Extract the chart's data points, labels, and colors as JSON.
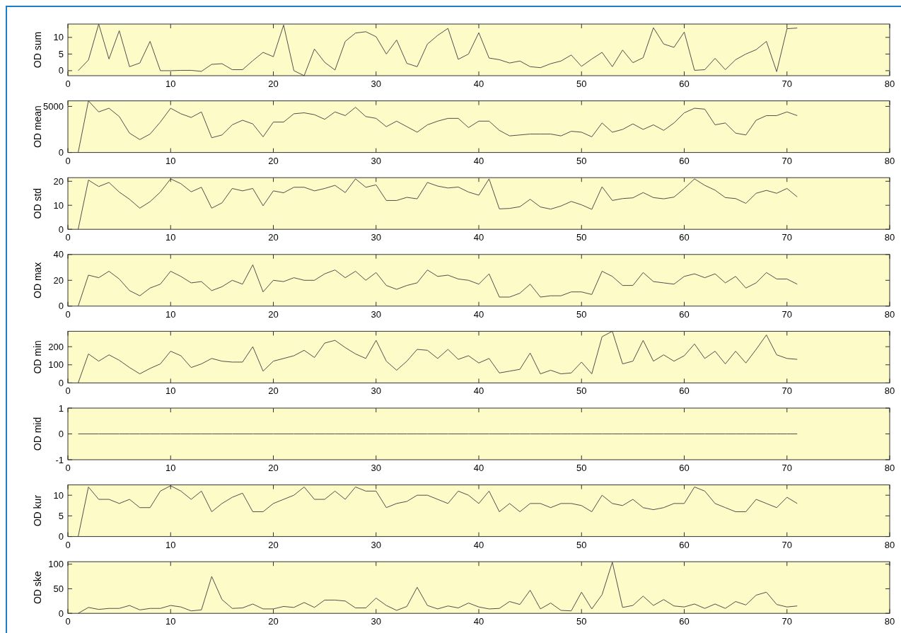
{
  "chart_data": [
    {
      "type": "line",
      "ylabel": "OD sum",
      "color": "#505050",
      "xlim": [
        0,
        80
      ],
      "xticks": [
        0,
        10,
        20,
        30,
        40,
        50,
        60,
        70,
        80
      ],
      "ylim": [
        -1.5,
        14
      ],
      "yticks": [
        0,
        5,
        10
      ],
      "x": [
        1,
        2,
        3,
        4,
        5,
        6,
        7,
        8,
        9,
        10,
        11,
        12,
        13,
        14,
        15,
        16,
        17,
        18,
        19,
        20,
        21,
        22,
        23,
        24,
        25,
        26,
        27,
        28,
        29,
        30,
        31,
        32,
        33,
        34,
        35,
        36,
        37,
        38,
        39,
        40,
        41,
        42,
        43,
        44,
        45,
        46,
        47,
        48,
        49,
        50,
        51,
        52,
        53,
        54,
        55,
        56,
        57,
        58,
        59,
        60,
        61,
        62,
        63,
        64,
        65,
        66,
        67,
        68,
        69,
        70,
        71
      ],
      "values": [
        0,
        3.2,
        14,
        3.5,
        12,
        1.2,
        2.3,
        8.8,
        0,
        0,
        0.1,
        0.1,
        -0.2,
        1.9,
        2.1,
        0.3,
        0.3,
        3,
        5.5,
        4.2,
        13.7,
        0,
        -1.5,
        6.5,
        2.5,
        0.2,
        8.8,
        11.3,
        11.7,
        10.2,
        5,
        9.2,
        2.2,
        1.2,
        8,
        10.6,
        12.7,
        3.4,
        5,
        11.4,
        3.8,
        3.3,
        2.3,
        2.9,
        1.2,
        0.9,
        2.1,
        2.9,
        4.7,
        1.3,
        3.5,
        5.5,
        1.2,
        6.2,
        2.4,
        3.9,
        12.9,
        8,
        7,
        11.6,
        0.1,
        0.3,
        3.7,
        0.3,
        3.3,
        5,
        6.3,
        8.8,
        -0.3,
        12.6,
        12.8
      ]
    },
    {
      "type": "line",
      "ylabel": "OD mean",
      "color": "#505050",
      "xlim": [
        0,
        80
      ],
      "xticks": [
        0,
        10,
        20,
        30,
        40,
        50,
        60,
        70,
        80
      ],
      "ylim": [
        0,
        5600
      ],
      "yticks": [
        0,
        5000
      ],
      "x": [
        1,
        2,
        3,
        4,
        5,
        6,
        7,
        8,
        9,
        10,
        11,
        12,
        13,
        14,
        15,
        16,
        17,
        18,
        19,
        20,
        21,
        22,
        23,
        24,
        25,
        26,
        27,
        28,
        29,
        30,
        31,
        32,
        33,
        34,
        35,
        36,
        37,
        38,
        39,
        40,
        41,
        42,
        43,
        44,
        45,
        46,
        47,
        48,
        49,
        50,
        51,
        52,
        53,
        54,
        55,
        56,
        57,
        58,
        59,
        60,
        61,
        62,
        63,
        64,
        65,
        66,
        67,
        68,
        69,
        70,
        71
      ],
      "values": [
        0,
        5600,
        4400,
        4800,
        3900,
        2100,
        1400,
        2000,
        3300,
        4800,
        4200,
        3800,
        4400,
        1600,
        1900,
        3000,
        3500,
        3100,
        1700,
        3300,
        3300,
        4200,
        4300,
        4100,
        3600,
        4400,
        4000,
        4900,
        3900,
        3700,
        2800,
        3400,
        2800,
        2200,
        3000,
        3400,
        3700,
        3700,
        2700,
        3400,
        3400,
        2400,
        1800,
        1900,
        2000,
        2000,
        2000,
        1800,
        2300,
        2200,
        1700,
        3200,
        2200,
        2500,
        3100,
        2500,
        3000,
        2400,
        3200,
        4300,
        4800,
        4700,
        3000,
        3200,
        2100,
        1900,
        3500,
        4000,
        4000,
        4400,
        4000
      ]
    },
    {
      "type": "line",
      "ylabel": "OD std",
      "color": "#505050",
      "xlim": [
        0,
        80
      ],
      "xticks": [
        0,
        10,
        20,
        30,
        40,
        50,
        60,
        70,
        80
      ],
      "ylim": [
        0,
        21.5
      ],
      "yticks": [
        0,
        10,
        20
      ],
      "x": [
        1,
        2,
        3,
        4,
        5,
        6,
        7,
        8,
        9,
        10,
        11,
        12,
        13,
        14,
        15,
        16,
        17,
        18,
        19,
        20,
        21,
        22,
        23,
        24,
        25,
        26,
        27,
        28,
        29,
        30,
        31,
        32,
        33,
        34,
        35,
        36,
        37,
        38,
        39,
        40,
        41,
        42,
        43,
        44,
        45,
        46,
        47,
        48,
        49,
        50,
        51,
        52,
        53,
        54,
        55,
        56,
        57,
        58,
        59,
        60,
        61,
        62,
        63,
        64,
        65,
        66,
        67,
        68,
        69,
        70,
        71
      ],
      "values": [
        0,
        20.5,
        17.8,
        19.5,
        15.5,
        12.5,
        8.8,
        11.5,
        15.5,
        21,
        19,
        15.6,
        17.5,
        8.8,
        11,
        17,
        16,
        17,
        9.8,
        16,
        15.2,
        17.5,
        17.5,
        16,
        17,
        18.3,
        15.3,
        21,
        17.5,
        18.5,
        12,
        12,
        13.3,
        12.7,
        19.5,
        18,
        17.2,
        17.6,
        15.5,
        14.2,
        21,
        8.5,
        8.7,
        9.4,
        12.5,
        9.3,
        8.4,
        9.7,
        11.6,
        10.2,
        8.3,
        17.7,
        12,
        12.8,
        13.1,
        15.3,
        13.2,
        12.7,
        13.4,
        17,
        21,
        18.3,
        16.3,
        13.2,
        12.8,
        10.8,
        15,
        16.2,
        15,
        17,
        13.5
      ]
    },
    {
      "type": "line",
      "ylabel": "OD max",
      "color": "#505050",
      "xlim": [
        0,
        80
      ],
      "xticks": [
        0,
        10,
        20,
        30,
        40,
        50,
        60,
        70,
        80
      ],
      "ylim": [
        0,
        40
      ],
      "yticks": [
        0,
        20,
        40
      ],
      "x": [
        1,
        2,
        3,
        4,
        5,
        6,
        7,
        8,
        9,
        10,
        11,
        12,
        13,
        14,
        15,
        16,
        17,
        18,
        19,
        20,
        21,
        22,
        23,
        24,
        25,
        26,
        27,
        28,
        29,
        30,
        31,
        32,
        33,
        34,
        35,
        36,
        37,
        38,
        39,
        40,
        41,
        42,
        43,
        44,
        45,
        46,
        47,
        48,
        49,
        50,
        51,
        52,
        53,
        54,
        55,
        56,
        57,
        58,
        59,
        60,
        61,
        62,
        63,
        64,
        65,
        66,
        67,
        68,
        69,
        70,
        71
      ],
      "values": [
        0,
        24,
        22,
        27,
        21,
        12,
        8,
        14,
        17,
        27,
        23,
        18,
        19,
        12,
        15,
        20,
        17,
        32,
        11,
        20,
        19,
        22,
        20,
        20,
        25,
        28,
        22,
        27,
        20,
        26,
        16,
        13,
        16,
        18,
        28,
        23,
        24,
        21,
        20,
        17,
        25,
        7,
        7,
        10,
        17,
        7,
        8,
        8,
        11,
        11,
        9,
        27,
        23,
        16,
        16,
        26,
        19,
        18,
        17,
        23,
        25,
        22,
        25,
        18,
        23,
        14,
        18,
        26,
        21,
        21,
        17
      ]
    },
    {
      "type": "line",
      "ylabel": "OD min",
      "color": "#505050",
      "xlim": [
        0,
        80
      ],
      "xticks": [
        0,
        10,
        20,
        30,
        40,
        50,
        60,
        70,
        80
      ],
      "ylim": [
        0,
        285
      ],
      "yticks": [
        0,
        100,
        200
      ],
      "x": [
        1,
        2,
        3,
        4,
        5,
        6,
        7,
        8,
        9,
        10,
        11,
        12,
        13,
        14,
        15,
        16,
        17,
        18,
        19,
        20,
        21,
        22,
        23,
        24,
        25,
        26,
        27,
        28,
        29,
        30,
        31,
        32,
        33,
        34,
        35,
        36,
        37,
        38,
        39,
        40,
        41,
        42,
        43,
        44,
        45,
        46,
        47,
        48,
        49,
        50,
        51,
        52,
        53,
        54,
        55,
        56,
        57,
        58,
        59,
        60,
        61,
        62,
        63,
        64,
        65,
        66,
        67,
        68,
        69,
        70,
        71
      ],
      "values": [
        0,
        160,
        120,
        155,
        125,
        85,
        50,
        80,
        105,
        175,
        150,
        85,
        105,
        135,
        120,
        115,
        115,
        200,
        65,
        120,
        135,
        150,
        180,
        140,
        220,
        235,
        195,
        160,
        135,
        235,
        120,
        70,
        120,
        185,
        180,
        135,
        185,
        130,
        150,
        110,
        135,
        55,
        65,
        75,
        165,
        50,
        70,
        50,
        55,
        115,
        50,
        255,
        285,
        105,
        120,
        235,
        120,
        155,
        120,
        150,
        215,
        135,
        175,
        105,
        175,
        110,
        185,
        265,
        155,
        135,
        130
      ]
    },
    {
      "type": "line",
      "ylabel": "OD mid",
      "color": "#505050",
      "xlim": [
        0,
        80
      ],
      "xticks": [
        0,
        10,
        20,
        30,
        40,
        50,
        60,
        70,
        80
      ],
      "ylim": [
        -1,
        1
      ],
      "yticks": [
        -1,
        0,
        1
      ],
      "x": [
        1,
        2,
        3,
        4,
        5,
        6,
        7,
        8,
        9,
        10,
        11,
        12,
        13,
        14,
        15,
        16,
        17,
        18,
        19,
        20,
        21,
        22,
        23,
        24,
        25,
        26,
        27,
        28,
        29,
        30,
        31,
        32,
        33,
        34,
        35,
        36,
        37,
        38,
        39,
        40,
        41,
        42,
        43,
        44,
        45,
        46,
        47,
        48,
        49,
        50,
        51,
        52,
        53,
        54,
        55,
        56,
        57,
        58,
        59,
        60,
        61,
        62,
        63,
        64,
        65,
        66,
        67,
        68,
        69,
        70,
        71
      ],
      "values": [
        0,
        0,
        0,
        0,
        0,
        0,
        0,
        0,
        0,
        0,
        0,
        0,
        0,
        0,
        0,
        0,
        0,
        0,
        0,
        0,
        0,
        0,
        0,
        0,
        0,
        0,
        0,
        0,
        0,
        0,
        0,
        0,
        0,
        0,
        0,
        0,
        0,
        0,
        0,
        0,
        0,
        0,
        0,
        0,
        0,
        0,
        0,
        0,
        0,
        0,
        0,
        0,
        0,
        0,
        0,
        0,
        0,
        0,
        0,
        0,
        0,
        0,
        0,
        0,
        0,
        0,
        0,
        0,
        0,
        0,
        0
      ]
    },
    {
      "type": "line",
      "ylabel": "OD kur",
      "color": "#505050",
      "xlim": [
        0,
        80
      ],
      "xticks": [
        0,
        10,
        20,
        30,
        40,
        50,
        60,
        70,
        80
      ],
      "ylim": [
        0,
        12.5
      ],
      "yticks": [
        0,
        5,
        10
      ],
      "x": [
        1,
        2,
        3,
        4,
        5,
        6,
        7,
        8,
        9,
        10,
        11,
        12,
        13,
        14,
        15,
        16,
        17,
        18,
        19,
        20,
        21,
        22,
        23,
        24,
        25,
        26,
        27,
        28,
        29,
        30,
        31,
        32,
        33,
        34,
        35,
        36,
        37,
        38,
        39,
        40,
        41,
        42,
        43,
        44,
        45,
        46,
        47,
        48,
        49,
        50,
        51,
        52,
        53,
        54,
        55,
        56,
        57,
        58,
        59,
        60,
        61,
        62,
        63,
        64,
        65,
        66,
        67,
        68,
        69,
        70,
        71
      ],
      "values": [
        0,
        12,
        9,
        9,
        8,
        9,
        7,
        7,
        11,
        12.3,
        11,
        9,
        11,
        6,
        8,
        9.5,
        10.5,
        6,
        6,
        8,
        9,
        10,
        12,
        9,
        9,
        11,
        9,
        12,
        11,
        11,
        7,
        8,
        8.5,
        10,
        10,
        9,
        8,
        11,
        10,
        8,
        11,
        6,
        8,
        6,
        8,
        8,
        7,
        8,
        8,
        7.5,
        6,
        10,
        8,
        7.5,
        9,
        7,
        6.5,
        7,
        8,
        8,
        12,
        11,
        8,
        7,
        6,
        6,
        9,
        8,
        7,
        9.5,
        8
      ]
    },
    {
      "type": "line",
      "ylabel": "OD ske",
      "color": "#505050",
      "xlim": [
        0,
        80
      ],
      "xticks": [
        0,
        10,
        20,
        30,
        40,
        50,
        60,
        70,
        80
      ],
      "ylim": [
        0,
        105
      ],
      "yticks": [
        0,
        50,
        100
      ],
      "x": [
        1,
        2,
        3,
        4,
        5,
        6,
        7,
        8,
        9,
        10,
        11,
        12,
        13,
        14,
        15,
        16,
        17,
        18,
        19,
        20,
        21,
        22,
        23,
        24,
        25,
        26,
        27,
        28,
        29,
        30,
        31,
        32,
        33,
        34,
        35,
        36,
        37,
        38,
        39,
        40,
        41,
        42,
        43,
        44,
        45,
        46,
        47,
        48,
        49,
        50,
        51,
        52,
        53,
        54,
        55,
        56,
        57,
        58,
        59,
        60,
        61,
        62,
        63,
        64,
        65,
        66,
        67,
        68,
        69,
        70,
        71
      ],
      "values": [
        0,
        12,
        8,
        10,
        10,
        16,
        7,
        10,
        10,
        16,
        13,
        5,
        7,
        75,
        28,
        10,
        11,
        19,
        9,
        9,
        14,
        12,
        22,
        12,
        27,
        27,
        25,
        11,
        11,
        31,
        16,
        6,
        14,
        53,
        16,
        9,
        15,
        11,
        21,
        13,
        9,
        10,
        24,
        18,
        47,
        9,
        21,
        6,
        5,
        43,
        9,
        38,
        104,
        12,
        16,
        35,
        16,
        28,
        15,
        13,
        19,
        10,
        19,
        10,
        24,
        17,
        37,
        43,
        18,
        13,
        15
      ]
    }
  ]
}
